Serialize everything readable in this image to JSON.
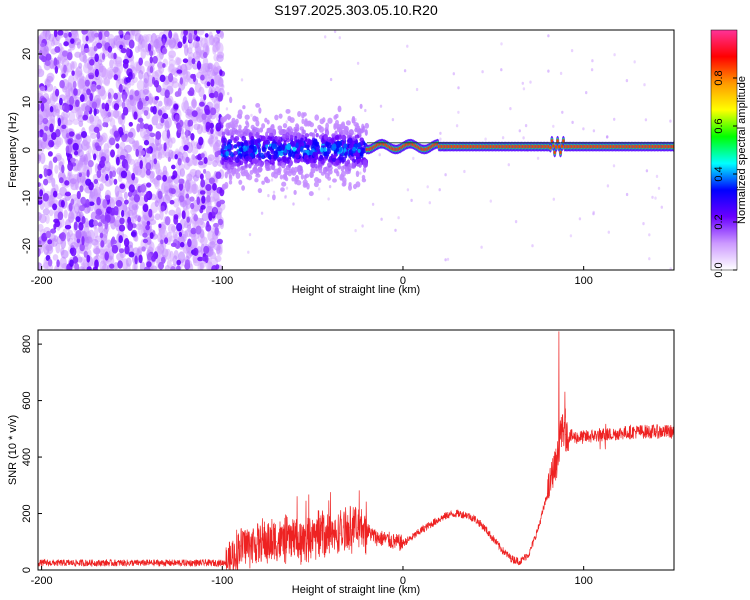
{
  "title": "S197.2025.303.05.10.R20",
  "chart_data": [
    {
      "type": "heatmap",
      "xlabel": "Height of straight line (km)",
      "ylabel": "Frequency (Hz)",
      "xlim": [
        -202,
        150
      ],
      "ylim": [
        -25,
        25
      ],
      "xticks": [
        "-200",
        "-100",
        "0",
        "100"
      ],
      "yticks": [
        "-20",
        "-10",
        "0",
        "10",
        "20"
      ],
      "colorbar": {
        "label": "Normalized spectral amplitude",
        "range": [
          0.0,
          1.0
        ],
        "ticks": [
          "0.0",
          "0.2",
          "0.4",
          "0.6",
          "0.8"
        ],
        "colors": [
          "#ffffff",
          "#cc99ff",
          "#6a00ff",
          "#0000ff",
          "#00ffff",
          "#00ff00",
          "#ffff00",
          "#ff9900",
          "#ff0000",
          "#ff3399"
        ]
      },
      "features": {
        "noise_region_km": [
          -202,
          -100
        ],
        "scatter_region_km": [
          -100,
          -20
        ],
        "signal_line_km": [
          -20,
          150
        ],
        "signal_frequency_hz": 1.0,
        "signal_amplitude": 0.85
      },
      "grid": false
    },
    {
      "type": "line",
      "xlabel": "Height of straight line (km)",
      "ylabel": "SNR (10 * v/v)",
      "xlim": [
        -202,
        150
      ],
      "ylim": [
        0,
        850
      ],
      "xticks": [
        "-200",
        "-100",
        "0",
        "100"
      ],
      "yticks": [
        "0",
        "200",
        "400",
        "600",
        "800"
      ],
      "series": [
        {
          "color": "#ee2222",
          "x": [
            -202,
            -180,
            -160,
            -140,
            -120,
            -100,
            -95,
            -90,
            -80,
            -70,
            -60,
            -50,
            -45,
            -40,
            -35,
            -30,
            -25,
            -20,
            -15,
            -10,
            -5,
            0,
            5,
            10,
            15,
            20,
            25,
            30,
            35,
            40,
            45,
            50,
            55,
            60,
            65,
            70,
            75,
            80,
            83,
            85,
            86,
            87,
            88,
            89,
            90,
            95,
            100,
            105,
            110,
            115,
            120,
            130,
            140,
            150
          ],
          "y": [
            25,
            25,
            25,
            25,
            25,
            25,
            35,
            85,
            95,
            100,
            110,
            110,
            140,
            120,
            130,
            150,
            150,
            140,
            115,
            110,
            100,
            95,
            115,
            140,
            160,
            180,
            195,
            200,
            195,
            180,
            150,
            110,
            70,
            40,
            30,
            60,
            150,
            270,
            350,
            380,
            420,
            470,
            500,
            480,
            480,
            470,
            470,
            475,
            480,
            480,
            485,
            490,
            490,
            490
          ]
        }
      ],
      "grid": false
    }
  ]
}
